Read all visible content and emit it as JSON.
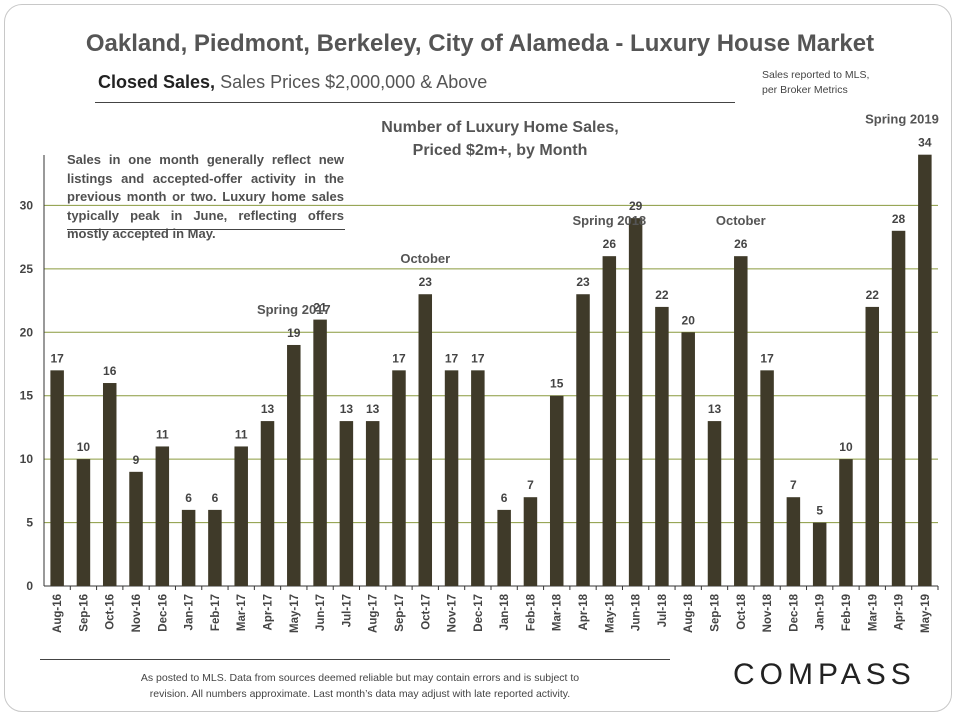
{
  "title": "Oakland, Piedmont, Berkeley, City of Alameda - Luxury House Market",
  "subtitle_bold": "Closed Sales,",
  "subtitle_rest": "Sales Prices $2,000,000 & Above",
  "source_note_line1": "Sales reported to MLS,",
  "source_note_line2": "per Broker Metrics",
  "chart_title_line1": "Number of Luxury Home Sales,",
  "chart_title_line2": "Priced $2m+, by Month",
  "annotation_text": "Sales in one month generally reflect new listings and accepted-offer activity in the previous month or two. Luxury home sales typically peak in June, reflecting offers mostly accepted in May.",
  "footer_line1": "As posted to MLS. Data from sources deemed reliable but may contain errors and is subject to",
  "footer_line2": "revision. All numbers approximate. Last month’s data may adjust with late reported activity.",
  "logo": "COMPASS",
  "colors": {
    "bar": "#3f3a29",
    "grid": "#8a9a3f",
    "text": "#555555"
  },
  "chart_data": {
    "type": "bar",
    "categories": [
      "Aug-16",
      "Sep-16",
      "Oct-16",
      "Nov-16",
      "Dec-16",
      "Jan-17",
      "Feb-17",
      "Mar-17",
      "Apr-17",
      "May-17",
      "Jun-17",
      "Jul-17",
      "Aug-17",
      "Sep-17",
      "Oct-17",
      "Nov-17",
      "Dec-17",
      "Jan-18",
      "Feb-18",
      "Mar-18",
      "Apr-18",
      "May-18",
      "Jun-18",
      "Jul-18",
      "Aug-18",
      "Sep-18",
      "Oct-18",
      "Nov-18",
      "Dec-18",
      "Jan-19",
      "Feb-19",
      "Mar-19",
      "Apr-19",
      "May-19"
    ],
    "values": [
      17,
      10,
      16,
      9,
      11,
      6,
      6,
      11,
      13,
      19,
      21,
      13,
      13,
      17,
      23,
      17,
      17,
      6,
      7,
      15,
      23,
      26,
      29,
      22,
      20,
      13,
      26,
      17,
      7,
      5,
      10,
      22,
      28,
      34
    ],
    "ylim": [
      0,
      35
    ],
    "yticks": [
      0,
      5,
      10,
      15,
      20,
      25,
      30
    ],
    "grid": true,
    "annotations": [
      {
        "text": "Spring 2017",
        "category": "May-17"
      },
      {
        "text": "October",
        "category": "Oct-17"
      },
      {
        "text": "Spring 2018",
        "category": "May-18"
      },
      {
        "text": "October",
        "category": "Oct-18"
      },
      {
        "text": "Spring 2019",
        "category": "May-19"
      }
    ]
  }
}
